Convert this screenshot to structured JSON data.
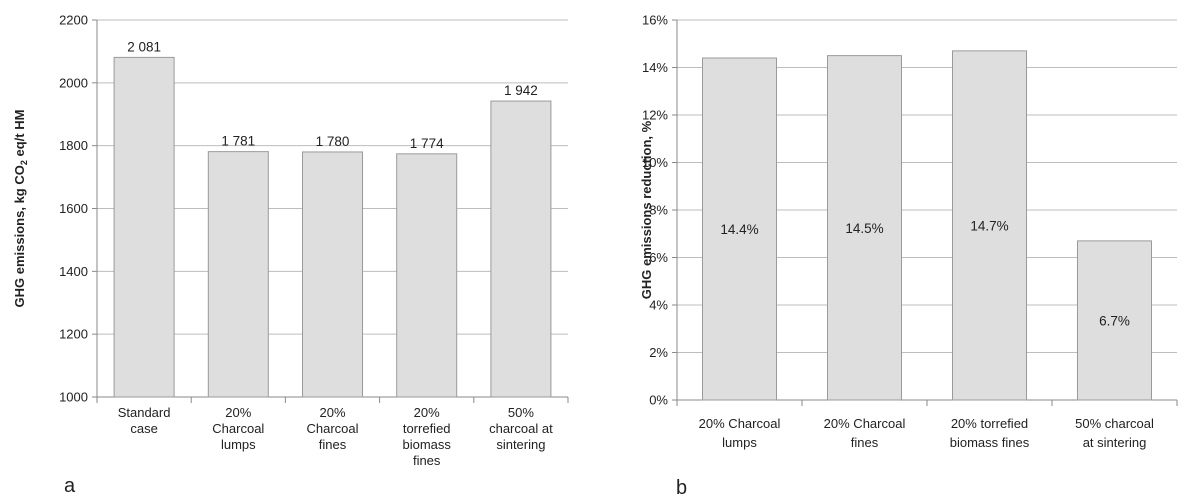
{
  "chart_data": [
    {
      "panel_label": "a",
      "type": "bar",
      "categories": [
        [
          "Standard",
          "case"
        ],
        [
          "20%",
          "Charcoal",
          "lumps"
        ],
        [
          "20%",
          "Charcoal",
          "fines"
        ],
        [
          "20%",
          "torrefied",
          "biomass",
          "fines"
        ],
        [
          "50%",
          "charcoal at",
          "sintering"
        ]
      ],
      "values": [
        2081,
        1781,
        1780,
        1774,
        1942
      ],
      "data_labels": [
        "2 081",
        "1 781",
        "1 780",
        "1 774",
        "1 942"
      ],
      "ylabel_parts": [
        "GHG emissions, kg CO",
        "2",
        " eq/t HM"
      ],
      "ylim": [
        1000,
        2200
      ],
      "yticks": [
        1000,
        1200,
        1400,
        1600,
        1800,
        2000,
        2200
      ],
      "ytick_labels": [
        "1000",
        "1200",
        "1400",
        "1600",
        "1800",
        "2000",
        "2200"
      ],
      "grid": true,
      "bar_color": "#dedede",
      "bar_stroke": "#9a9a9a",
      "label_position": "above"
    },
    {
      "panel_label": "b",
      "type": "bar",
      "categories": [
        [
          "20% Charcoal",
          "lumps"
        ],
        [
          "20% Charcoal",
          "fines"
        ],
        [
          "20% torrefied",
          "biomass fines"
        ],
        [
          "50% charcoal",
          "at sintering"
        ]
      ],
      "values": [
        14.4,
        14.5,
        14.7,
        6.7
      ],
      "data_labels": [
        "14.4%",
        "14.5%",
        "14.7%",
        "6.7%"
      ],
      "ylabel_parts": [
        "GHG emissions reduction, %"
      ],
      "ylim": [
        0,
        16
      ],
      "yticks": [
        0,
        2,
        4,
        6,
        8,
        10,
        12,
        14,
        16
      ],
      "ytick_labels": [
        "0%",
        "2%",
        "4%",
        "6%",
        "8%",
        "10%",
        "12%",
        "14%",
        "16%"
      ],
      "grid": true,
      "bar_color": "#dedede",
      "bar_stroke": "#9a9a9a",
      "label_position": "center"
    }
  ]
}
